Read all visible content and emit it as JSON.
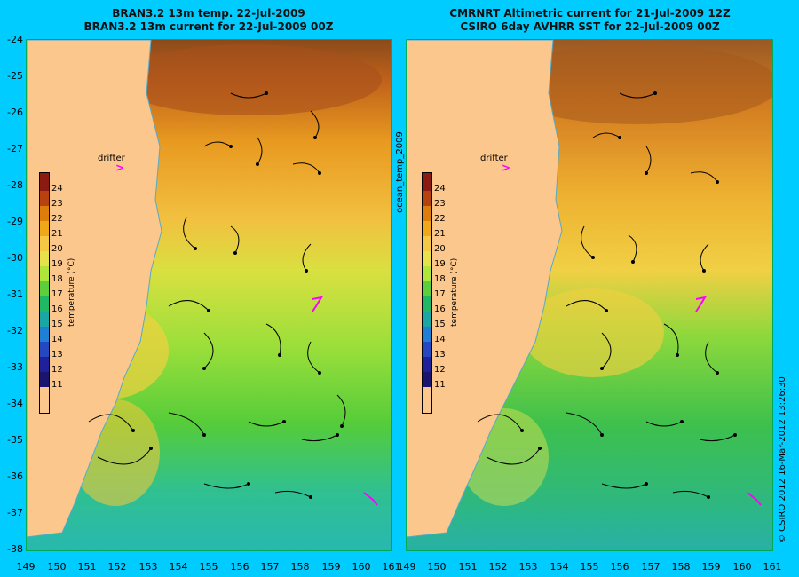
{
  "titles": {
    "left_line1": "BRAN3.2 13m temp. 22-Jul-2009",
    "left_line2": "BRAN3.2 13m current for 22-Jul-2009 00Z",
    "right_line1": "CMRNRT Altimetric current for 21-Jul-2009 12Z",
    "right_line2": "CSIRO 6day AVHRR SST for 22-Jul-2009 00Z"
  },
  "y_axis": {
    "ticks": [
      "-24",
      "-25",
      "-26",
      "-27",
      "-28",
      "-29",
      "-30",
      "-31",
      "-32",
      "-33",
      "-34",
      "-35",
      "-36",
      "-37",
      "-38"
    ]
  },
  "x_axis": {
    "left_ticks": [
      "149",
      "150",
      "151",
      "152",
      "153",
      "154",
      "155",
      "156",
      "157",
      "158",
      "159",
      "160",
      "161"
    ],
    "right_ticks": [
      "149",
      "150",
      "151",
      "152",
      "153",
      "154",
      "155",
      "156",
      "157",
      "158",
      "159",
      "160",
      "161"
    ]
  },
  "legend": {
    "title": "temperature (°C)",
    "labels": [
      "24",
      "23",
      "22",
      "21",
      "20",
      "19",
      "18",
      "17",
      "16",
      "15",
      "14",
      "13",
      "12",
      "11"
    ],
    "colors": [
      "#8b1a12",
      "#b84110",
      "#dd7d0a",
      "#f0a81b",
      "#f4c844",
      "#e8e24a",
      "#aee63b",
      "#5dcf3a",
      "#20b864",
      "#1aa6a4",
      "#1f7ed6",
      "#2448c2",
      "#20209a",
      "#1a1670"
    ]
  },
  "annotations": {
    "drifter_label": "drifter",
    "mid_label": "ocean_temp_2009",
    "credit": "© CSIRO 2012   16-Mar-2012 13:26:30"
  },
  "colors": {
    "background": "#00ccff",
    "land": "#fbc78d",
    "drifter": "#ff00ff"
  }
}
